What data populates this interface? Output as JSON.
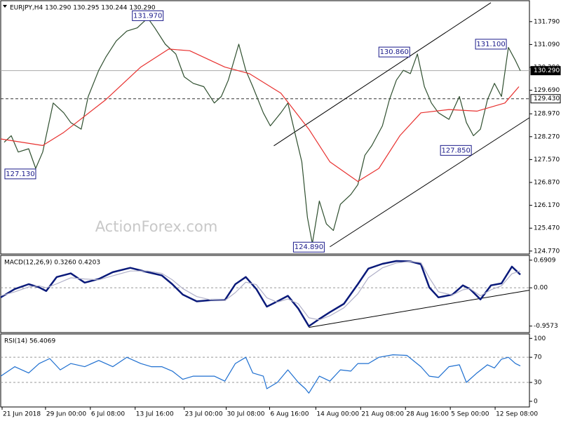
{
  "chart_data": [
    {
      "type": "line",
      "title": "EURJPY,H4  130.290 130.295 130.244 130.290",
      "watermark": "ActionForex.com",
      "xlim": [
        0,
        377.5
      ],
      "ylim": [
        124.68,
        132.43
      ],
      "yticks": [
        {
          "value": 131.79,
          "label": "131.790"
        },
        {
          "value": 131.09,
          "label": "131.090"
        },
        {
          "value": 130.39,
          "label": "130.390"
        },
        {
          "value": 129.69,
          "label": "129.690"
        },
        {
          "value": 128.97,
          "label": "128.970"
        },
        {
          "value": 128.27,
          "label": "128.270"
        },
        {
          "value": 127.57,
          "label": "127.570"
        },
        {
          "value": 126.87,
          "label": "126.870"
        },
        {
          "value": 126.17,
          "label": "126.170"
        },
        {
          "value": 125.47,
          "label": "125.470"
        },
        {
          "value": 124.77,
          "label": "124.770"
        }
      ],
      "series": [
        {
          "name": "EURJPY",
          "color": "#2f4f2f",
          "x": [
            2.5,
            7.5,
            12.5,
            20,
            25,
            30,
            37.5,
            45,
            50,
            57.5,
            62.5,
            70,
            75,
            82.5,
            90,
            97.5,
            105,
            110,
            117.5,
            125,
            131,
            137.5,
            145,
            152.5,
            157.5,
            162.5,
            170,
            175,
            180,
            187.5,
            192.5,
            200,
            205,
            210,
            215,
            219,
            222.5,
            227.5,
            232.5,
            237.5,
            242.5,
            250,
            255,
            260,
            265,
            272.5,
            277.5,
            282.5,
            287.5,
            292.5,
            297.5,
            302.5,
            307.5,
            312.5,
            320,
            327.5,
            332.5,
            337.5,
            342.5,
            347.5,
            352.5,
            357.5,
            362.5,
            367.5,
            371
          ],
          "values": [
            128.1,
            128.3,
            127.8,
            127.9,
            127.3,
            127.8,
            129.3,
            129.0,
            128.7,
            128.5,
            129.5,
            130.3,
            130.7,
            131.2,
            131.5,
            131.6,
            131.9,
            131.6,
            131.1,
            130.8,
            130.1,
            129.9,
            129.8,
            129.3,
            129.5,
            130.0,
            131.1,
            130.3,
            129.8,
            129.0,
            128.6,
            129.0,
            129.3,
            128.4,
            127.5,
            125.8,
            125.0,
            126.3,
            125.6,
            125.4,
            126.2,
            126.5,
            126.8,
            127.7,
            128.0,
            128.6,
            129.4,
            130.0,
            130.3,
            130.2,
            130.8,
            129.8,
            129.3,
            129.0,
            128.8,
            129.5,
            128.7,
            128.3,
            128.5,
            129.4,
            129.9,
            129.5,
            131.0,
            130.6,
            130.29
          ]
        },
        {
          "name": "MA",
          "color": "#e8312f",
          "x": [
            0,
            30,
            45,
            75,
            100,
            120,
            135,
            160,
            177.5,
            200,
            220,
            235,
            255,
            270,
            285,
            300,
            320,
            340,
            360,
            370
          ],
          "values": [
            128.2,
            128.0,
            128.4,
            129.4,
            130.4,
            130.95,
            130.9,
            130.4,
            130.2,
            129.6,
            128.5,
            127.5,
            126.9,
            127.3,
            128.3,
            129.0,
            129.1,
            129.05,
            129.3,
            129.8
          ]
        }
      ],
      "hlines": [
        {
          "value": 130.29,
          "label": "130.290",
          "style": "solid"
        },
        {
          "value": 129.43,
          "label": "129.430",
          "style": "dashed"
        }
      ],
      "trendlines": [
        {
          "x": [
            195,
            350
          ],
          "values": [
            127.99,
            132.37
          ]
        },
        {
          "x": [
            235,
            377.5
          ],
          "values": [
            124.9,
            128.85
          ]
        }
      ],
      "annotations": [
        {
          "x": 105,
          "value": 131.97,
          "label": "131.970"
        },
        {
          "x": 14,
          "value": 127.13,
          "label": "127.130"
        },
        {
          "x": 281,
          "value": 130.86,
          "label": "130.860"
        },
        {
          "x": 350,
          "value": 131.1,
          "label": "131.100"
        },
        {
          "x": 325,
          "value": 127.85,
          "label": "127.850"
        },
        {
          "x": 220,
          "value": 124.89,
          "label": "124.890"
        }
      ]
    },
    {
      "type": "line",
      "title": "MACD(12,26,9) 0.3260 0.4203",
      "xlim": [
        0,
        377.5
      ],
      "ylim": [
        -1.12,
        0.81
      ],
      "yticks": [
        0.6909,
        {
          "value": 0,
          "label": "0.00"
        },
        -0.9573
      ],
      "levels": [
        0
      ],
      "series": [
        {
          "name": "MACD",
          "color": "#0a1a7a",
          "x": [
            0,
            10,
            20,
            27.5,
            32.5,
            40,
            50,
            60,
            70,
            80,
            92.5,
            105,
            115,
            122.5,
            130,
            140,
            150,
            160,
            167.5,
            175,
            182.5,
            190,
            197.5,
            205,
            212.5,
            220,
            227.5,
            235,
            245,
            255,
            262.5,
            272.5,
            282.5,
            292.5,
            300,
            306,
            312.5,
            322.5,
            330,
            335,
            342.5,
            350,
            357.5,
            365,
            371
          ],
          "values": [
            -0.24,
            -0.03,
            0.09,
            0.01,
            -0.08,
            0.27,
            0.36,
            0.13,
            0.22,
            0.39,
            0.5,
            0.39,
            0.31,
            0.09,
            -0.17,
            -0.34,
            -0.31,
            -0.31,
            0.09,
            0.27,
            -0.03,
            -0.47,
            -0.34,
            -0.2,
            -0.52,
            -0.96,
            -0.78,
            -0.61,
            -0.4,
            0.09,
            0.48,
            0.6,
            0.67,
            0.66,
            0.59,
            0.01,
            -0.24,
            -0.17,
            0.06,
            -0.03,
            -0.29,
            0.06,
            0.11,
            0.53,
            0.33
          ]
        },
        {
          "name": "Signal",
          "color": "#b0b0c8",
          "x": [
            0,
            10,
            20,
            27.5,
            32.5,
            40,
            50,
            60,
            70,
            80,
            92.5,
            105,
            115,
            122.5,
            130,
            140,
            150,
            160,
            167.5,
            175,
            182.5,
            190,
            197.5,
            205,
            212.5,
            220,
            227.5,
            235,
            245,
            255,
            262.5,
            272.5,
            282.5,
            292.5,
            300,
            306,
            312.5,
            322.5,
            330,
            335,
            342.5,
            350,
            357.5,
            365,
            371
          ],
          "values": [
            -0.2,
            -0.1,
            0.02,
            0.05,
            0,
            0.1,
            0.25,
            0.22,
            0.2,
            0.3,
            0.42,
            0.42,
            0.36,
            0.2,
            -0.02,
            -0.22,
            -0.3,
            -0.32,
            -0.12,
            0.14,
            0.08,
            -0.25,
            -0.36,
            -0.28,
            -0.4,
            -0.75,
            -0.8,
            -0.7,
            -0.5,
            -0.15,
            0.25,
            0.5,
            0.62,
            0.66,
            0.63,
            0.25,
            -0.1,
            -0.18,
            -0.05,
            -0.02,
            -0.2,
            -0.05,
            0.05,
            0.35,
            0.42
          ]
        }
      ],
      "trendlines": [
        {
          "x": [
            220,
            377.5
          ],
          "values": [
            -0.99,
            -0.06
          ]
        }
      ]
    },
    {
      "type": "line",
      "title": "RSI(14) 56.4069",
      "xlim": [
        0,
        377.5
      ],
      "ylim": [
        -9,
        107
      ],
      "yticks": [
        100,
        70,
        30,
        0
      ],
      "levels": [
        30,
        70
      ],
      "xticks": [
        {
          "value": 1,
          "label": "21 Jun 2018"
        },
        {
          "value": 32,
          "label": "29 Jun 00:00"
        },
        {
          "value": 64,
          "label": "6 Jul 08:00"
        },
        {
          "value": 96,
          "label": "13 Jul 16:00"
        },
        {
          "value": 131,
          "label": "23 Jul 00:00"
        },
        {
          "value": 161,
          "label": "30 Jul 08:00"
        },
        {
          "value": 192,
          "label": "6 Aug 16:00"
        },
        {
          "value": 225,
          "label": "14 Aug 00:00"
        },
        {
          "value": 257,
          "label": "21 Aug 08:00"
        },
        {
          "value": 289,
          "label": "28 Aug 16:00"
        },
        {
          "value": 321,
          "label": "5 Sep 00:00"
        },
        {
          "value": 353,
          "label": "12 Sep 08:00"
        }
      ],
      "series": [
        {
          "name": "RSI",
          "color": "#1e6fd0",
          "x": [
            0,
            10,
            20,
            27.5,
            35,
            42.5,
            50,
            60,
            70,
            80,
            90,
            100,
            107.5,
            115,
            122.5,
            130,
            137.5,
            145,
            152.5,
            160,
            167.5,
            175,
            180,
            187.5,
            190,
            197.5,
            205,
            212.5,
            217.5,
            220,
            227.5,
            235,
            242.5,
            250,
            255,
            262.5,
            270,
            280,
            290,
            300,
            306,
            312.5,
            320,
            327.5,
            332.5,
            340,
            347.5,
            352.5,
            357.5,
            362.5,
            367.5,
            371
          ],
          "values": [
            40,
            55,
            45,
            60,
            68,
            50,
            60,
            55,
            65,
            55,
            70,
            60,
            55,
            55,
            48,
            35,
            40,
            40,
            40,
            32,
            60,
            70,
            45,
            40,
            20,
            30,
            50,
            30,
            20,
            13,
            40,
            32,
            50,
            48,
            60,
            60,
            70,
            74,
            73,
            55,
            40,
            38,
            55,
            58,
            30,
            45,
            58,
            53,
            67,
            70,
            60,
            56.4069
          ]
        }
      ]
    }
  ]
}
